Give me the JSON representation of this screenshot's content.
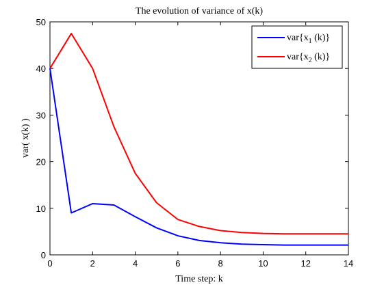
{
  "chart_data": {
    "type": "line",
    "title": "The evolution of variance of x(k)",
    "xlabel": "Time step: k",
    "ylabel": "var( x(k) )",
    "xlim": [
      0,
      14
    ],
    "ylim": [
      0,
      50
    ],
    "x_ticks": [
      0,
      2,
      4,
      6,
      8,
      10,
      12,
      14
    ],
    "y_ticks": [
      0,
      10,
      20,
      30,
      40,
      50
    ],
    "grid": false,
    "legend_position": "top-right",
    "x": [
      0,
      1,
      2,
      3,
      4,
      5,
      6,
      7,
      8,
      9,
      10,
      11,
      12,
      13,
      14
    ],
    "series": [
      {
        "name": "var{x1 (k)}",
        "legend_main": "var{x",
        "legend_sub": "1",
        "legend_tail": " (k)}",
        "color": "#0000ff",
        "values": [
          40,
          9,
          11,
          10.7,
          8.2,
          5.8,
          4.1,
          3.1,
          2.6,
          2.3,
          2.2,
          2.1,
          2.1,
          2.1,
          2.1
        ]
      },
      {
        "name": "var{x2 (k)}",
        "legend_main": "var{x",
        "legend_sub": "2",
        "legend_tail": " (k)}",
        "color": "#ff0000",
        "values": [
          40,
          47.5,
          40,
          27.5,
          17.5,
          11.2,
          7.6,
          6.1,
          5.2,
          4.8,
          4.6,
          4.5,
          4.5,
          4.5,
          4.5
        ]
      }
    ]
  }
}
